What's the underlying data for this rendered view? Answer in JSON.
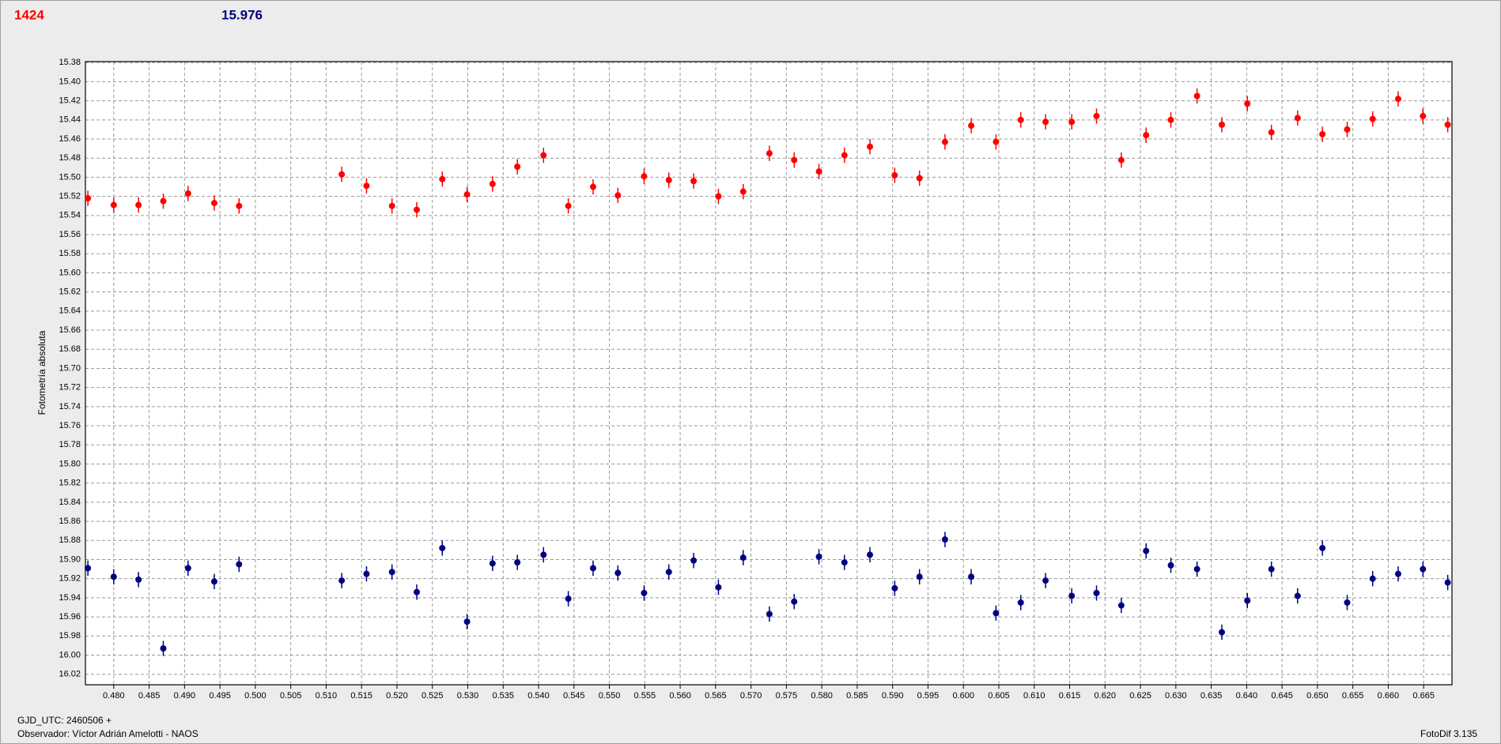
{
  "chart_data": {
    "type": "scatter",
    "title": "1424",
    "subtitle": "15.976",
    "ylabel": "Fotometría absoluta",
    "footer_left": [
      "GJD_UTC: 2460506 +",
      "Observador: Víctor Adrián Amelotti - NAOS"
    ],
    "footer_right": "FotoDif 3.135",
    "invert_y": true,
    "grid": true,
    "xlim": [
      0.476,
      0.669
    ],
    "ylim": [
      15.379,
      16.031
    ],
    "xticks": [
      {
        "value": 0.48,
        "label": "0.480"
      },
      0.485,
      {
        "value": 0.49,
        "label": "0.490"
      },
      0.495,
      {
        "value": 0.5,
        "label": "0.500"
      },
      0.505,
      {
        "value": 0.51,
        "label": "0.510"
      },
      0.515,
      {
        "value": 0.52,
        "label": "0.520"
      },
      0.525,
      {
        "value": 0.53,
        "label": "0.530"
      },
      0.535,
      {
        "value": 0.54,
        "label": "0.540"
      },
      0.545,
      {
        "value": 0.55,
        "label": "0.550"
      },
      0.555,
      {
        "value": 0.56,
        "label": "0.560"
      },
      0.565,
      {
        "value": 0.57,
        "label": "0.570"
      },
      0.575,
      {
        "value": 0.58,
        "label": "0.580"
      },
      0.585,
      {
        "value": 0.59,
        "label": "0.590"
      },
      0.595,
      {
        "value": 0.6,
        "label": "0.600"
      },
      0.605,
      {
        "value": 0.61,
        "label": "0.610"
      },
      0.615,
      {
        "value": 0.62,
        "label": "0.620"
      },
      0.625,
      {
        "value": 0.63,
        "label": "0.630"
      },
      0.635,
      {
        "value": 0.64,
        "label": "0.640"
      },
      0.645,
      {
        "value": 0.65,
        "label": "0.650"
      },
      0.655,
      {
        "value": 0.66,
        "label": "0.660"
      },
      0.665
    ],
    "yticks": [
      15.38,
      {
        "value": 15.4,
        "label": "15.40"
      },
      15.42,
      15.44,
      15.46,
      15.48,
      {
        "value": 15.5,
        "label": "15.50"
      },
      15.52,
      15.54,
      15.56,
      15.58,
      {
        "value": 15.6,
        "label": "15.60"
      },
      15.62,
      15.64,
      15.66,
      15.68,
      {
        "value": 15.7,
        "label": "15.70"
      },
      15.72,
      15.74,
      15.76,
      15.78,
      {
        "value": 15.8,
        "label": "15.80"
      },
      15.82,
      15.84,
      15.86,
      15.88,
      {
        "value": 15.9,
        "label": "15.90"
      },
      15.92,
      15.94,
      15.96,
      15.98,
      {
        "value": 16,
        "label": "16.00"
      },
      16.02
    ],
    "x": [
      0.47635,
      0.48,
      0.4835,
      0.487,
      0.4905,
      0.4942,
      0.4977,
      0.5122,
      0.5157,
      0.5193,
      0.5228,
      0.5264,
      0.5299,
      0.5335,
      0.537,
      0.5407,
      0.5442,
      0.5477,
      0.5512,
      0.5549,
      0.5584,
      0.5619,
      0.5654,
      0.5689,
      0.5726,
      0.5761,
      0.5796,
      0.5832,
      0.5868,
      0.5903,
      0.5938,
      0.5974,
      0.6011,
      0.6046,
      0.6081,
      0.6116,
      0.6153,
      0.6188,
      0.6223,
      0.6258,
      0.6293,
      0.633,
      0.6365,
      0.6401,
      0.6435,
      0.6472,
      0.6507,
      0.6542,
      0.6578,
      0.6614,
      0.6649,
      0.6684
    ],
    "series": [
      {
        "color": "#ff0000",
        "error": 0.008,
        "values": [
          15.522,
          15.529,
          15.529,
          15.525,
          15.517,
          15.527,
          15.53,
          15.497,
          15.509,
          15.53,
          15.534,
          15.502,
          15.518,
          15.507,
          15.489,
          15.477,
          15.53,
          15.51,
          15.519,
          15.499,
          15.503,
          15.504,
          15.52,
          15.515,
          15.475,
          15.482,
          15.494,
          15.477,
          15.468,
          15.498,
          15.501,
          15.463,
          15.446,
          15.463,
          15.44,
          15.442,
          15.442,
          15.436,
          15.482,
          15.456,
          15.44,
          15.415,
          15.445,
          15.423,
          15.453,
          15.438,
          15.455,
          15.45,
          15.439,
          15.418,
          15.436,
          15.445
        ]
      },
      {
        "color": "#000080",
        "error": 0.008,
        "values": [
          15.909,
          15.918,
          15.921,
          15.993,
          15.909,
          15.923,
          15.905,
          15.922,
          15.915,
          15.913,
          15.934,
          15.888,
          15.965,
          15.904,
          15.903,
          15.895,
          15.941,
          15.909,
          15.914,
          15.935,
          15.913,
          15.901,
          15.929,
          15.898,
          15.957,
          15.944,
          15.897,
          15.903,
          15.895,
          15.93,
          15.918,
          15.879,
          15.918,
          15.956,
          15.945,
          15.922,
          15.938,
          15.935,
          15.948,
          15.891,
          15.906,
          15.91,
          15.976,
          15.943,
          15.91,
          15.938,
          15.888,
          15.945,
          15.92,
          15.915,
          15.91,
          15.924
        ]
      }
    ]
  }
}
